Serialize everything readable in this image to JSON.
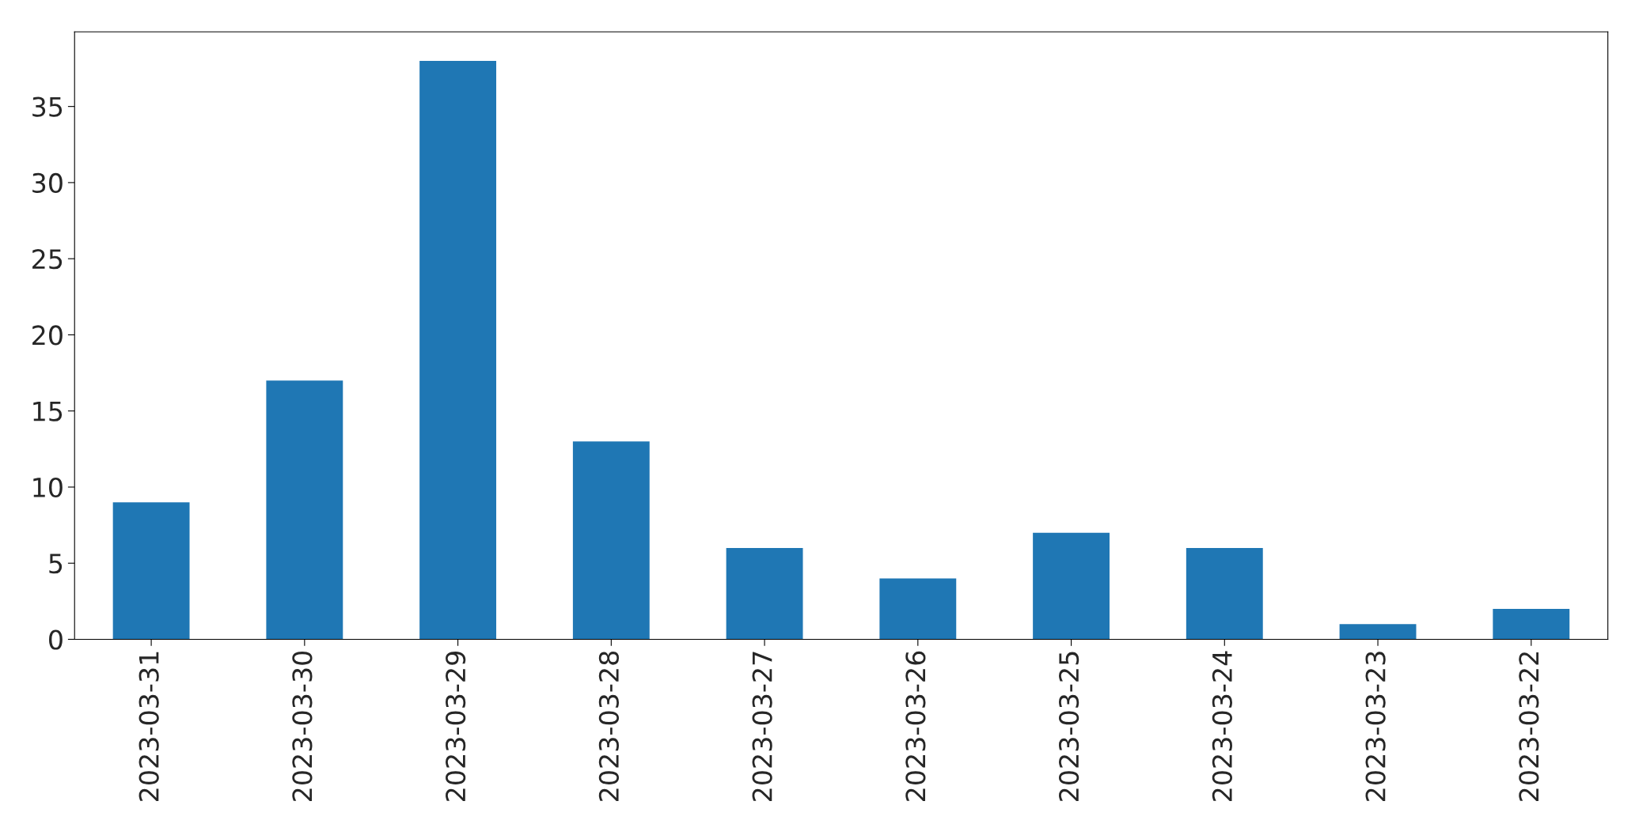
{
  "chart_data": {
    "type": "bar",
    "categories": [
      "2023-03-31",
      "2023-03-30",
      "2023-03-29",
      "2023-03-28",
      "2023-03-27",
      "2023-03-26",
      "2023-03-25",
      "2023-03-24",
      "2023-03-23",
      "2023-03-22"
    ],
    "values": [
      9,
      17,
      38,
      13,
      6,
      4,
      7,
      6,
      1,
      2
    ],
    "color": "#1f77b4",
    "ylim": [
      0,
      39.9
    ],
    "yticks": [
      0,
      5,
      10,
      15,
      20,
      25,
      30,
      35
    ],
    "grid": false,
    "legend": false
  }
}
